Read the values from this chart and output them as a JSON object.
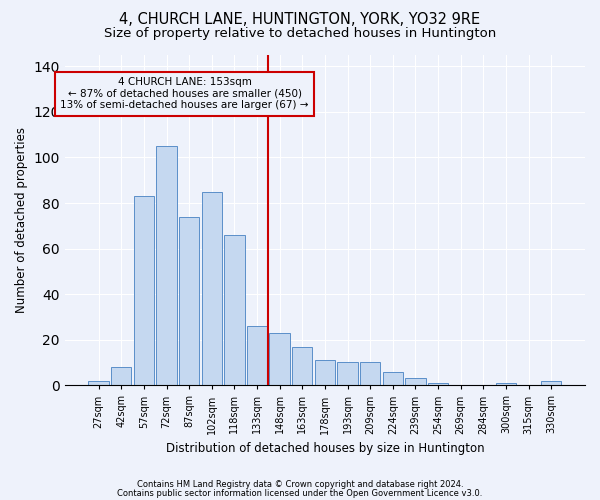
{
  "title": "4, CHURCH LANE, HUNTINGTON, YORK, YO32 9RE",
  "subtitle": "Size of property relative to detached houses in Huntington",
  "xlabel": "Distribution of detached houses by size in Huntington",
  "ylabel": "Number of detached properties",
  "footnote1": "Contains HM Land Registry data © Crown copyright and database right 2024.",
  "footnote2": "Contains public sector information licensed under the Open Government Licence v3.0.",
  "bar_labels": [
    "27sqm",
    "42sqm",
    "57sqm",
    "72sqm",
    "87sqm",
    "102sqm",
    "118sqm",
    "133sqm",
    "148sqm",
    "163sqm",
    "178sqm",
    "193sqm",
    "209sqm",
    "224sqm",
    "239sqm",
    "254sqm",
    "269sqm",
    "284sqm",
    "300sqm",
    "315sqm",
    "330sqm"
  ],
  "bar_values": [
    2,
    8,
    83,
    105,
    74,
    85,
    66,
    26,
    23,
    17,
    11,
    10,
    10,
    6,
    3,
    1,
    0,
    0,
    1,
    0,
    2
  ],
  "bar_color": "#c5d8f0",
  "bar_edge_color": "#5b8fc9",
  "vline_color": "#cc0000",
  "annotation_text": "4 CHURCH LANE: 153sqm\n← 87% of detached houses are smaller (450)\n13% of semi-detached houses are larger (67) →",
  "annotation_box_color": "#cc0000",
  "ylim": [
    0,
    145
  ],
  "background_color": "#eef2fb",
  "grid_color": "#ffffff",
  "title_fontsize": 10.5,
  "subtitle_fontsize": 9.5
}
